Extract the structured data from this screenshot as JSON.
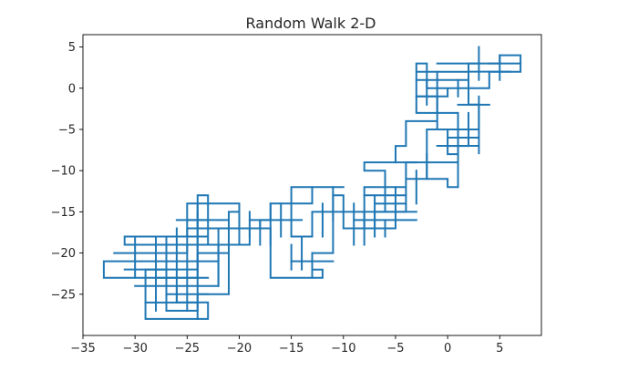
{
  "chart_data": {
    "type": "line",
    "title": "Random Walk 2-D",
    "xlabel": "",
    "ylabel": "",
    "xlim": [
      -35,
      9
    ],
    "ylim": [
      -30,
      6.5
    ],
    "xticks": [
      -35,
      -30,
      -25,
      -20,
      -15,
      -10,
      -5,
      0,
      5
    ],
    "yticks": [
      5,
      0,
      -5,
      -10,
      -15,
      -20,
      -25
    ],
    "grid": false,
    "series": [
      {
        "color": "#1f77b4",
        "x": [
          0,
          0,
          2,
          2,
          5,
          5,
          7,
          7,
          4,
          4,
          -2,
          -2,
          -3,
          -3,
          1,
          1,
          2,
          2,
          0,
          0,
          3,
          3,
          2,
          2,
          -3,
          -3,
          -1,
          -1,
          -2,
          -2,
          -4,
          -4,
          0,
          0,
          1,
          1,
          -2,
          -2,
          -4,
          -4,
          -7,
          -7,
          -10,
          -10,
          -11,
          -11,
          -13,
          -13,
          -12,
          -12,
          -17,
          -17,
          -19,
          -19,
          -21,
          -21,
          -20,
          -20,
          -24,
          -24,
          -23,
          -23,
          -27,
          -27,
          -33,
          -33,
          -27,
          -27,
          -25,
          -25,
          -22,
          -22,
          -26,
          -26,
          -23,
          -23,
          -29,
          -29,
          -27,
          -27,
          -31,
          -31,
          -25,
          -25,
          -23,
          -23,
          -20,
          -20,
          -25,
          -25,
          -21,
          -21,
          -24,
          -24,
          -27,
          -27,
          -24,
          -24,
          -21,
          -21,
          -18,
          -18,
          -17,
          -17,
          -13,
          -13,
          -15,
          -15,
          -13,
          -13,
          -10,
          -10,
          -8,
          -8,
          -4,
          -4,
          -6,
          -6,
          -8,
          -8,
          -5,
          -5,
          -4,
          -4,
          -1,
          -1,
          1,
          1,
          0,
          0,
          3,
          3
        ],
        "y": [
          -1,
          0,
          0,
          3,
          3,
          4,
          4,
          2,
          2,
          0,
          0,
          3,
          3,
          -3,
          -3,
          -5,
          -5,
          -7,
          -7,
          -5,
          -5,
          -2,
          -2,
          2,
          2,
          -1,
          -1,
          -5,
          -5,
          -9,
          -9,
          -11,
          -11,
          -12,
          -12,
          -9,
          -9,
          -11,
          -11,
          -15,
          -15,
          -17,
          -17,
          -13,
          -13,
          -20,
          -20,
          -22,
          -22,
          -23,
          -23,
          -17,
          -17,
          -19,
          -19,
          -15,
          -15,
          -17,
          -17,
          -13,
          -13,
          -18,
          -18,
          -21,
          -21,
          -23,
          -23,
          -20,
          -20,
          -19,
          -19,
          -24,
          -24,
          -26,
          -26,
          -28,
          -28,
          -22,
          -22,
          -19,
          -19,
          -18,
          -18,
          -16,
          -16,
          -19,
          -19,
          -14,
          -14,
          -17,
          -17,
          -25,
          -25,
          -27,
          -27,
          -23,
          -23,
          -20,
          -20,
          -17,
          -17,
          -16,
          -16,
          -14,
          -14,
          -12,
          -12,
          -18,
          -18,
          -15,
          -15,
          -17,
          -17,
          -12,
          -12,
          -15,
          -15,
          -10,
          -10,
          -9,
          -9,
          -7,
          -7,
          -4,
          -4,
          -5,
          -5,
          -8,
          -8,
          -6,
          -6,
          -8
        ]
      }
    ],
    "spurs": [
      [
        -32,
        -20,
        -27,
        -20
      ],
      [
        -31,
        -22,
        -24,
        -22
      ],
      [
        -30,
        -24,
        -26,
        -24
      ],
      [
        -29,
        -26,
        -24,
        -26
      ],
      [
        -28,
        -18,
        -28,
        -27
      ],
      [
        -26,
        -17,
        -26,
        -26
      ],
      [
        -24,
        -14,
        -24,
        -22
      ],
      [
        -30,
        -18,
        -30,
        -23
      ],
      [
        -27,
        -21,
        -22,
        -21
      ],
      [
        -26,
        -16,
        -21,
        -16
      ],
      [
        -28,
        -19,
        -21,
        -19
      ],
      [
        -22,
        -17,
        -22,
        -24
      ],
      [
        -19,
        -16,
        -14,
        -16
      ],
      [
        -17,
        -19,
        -17,
        -14
      ],
      [
        -16,
        -18,
        -16,
        -14
      ],
      [
        -15,
        -21,
        -11,
        -21
      ],
      [
        -14,
        -22,
        -14,
        -18
      ],
      [
        -12,
        -14,
        -12,
        -18
      ],
      [
        -9,
        -16,
        -3,
        -16
      ],
      [
        -10,
        -15,
        -3,
        -15
      ],
      [
        -9,
        -14,
        -9,
        -19
      ],
      [
        -7,
        -18,
        -7,
        -13
      ],
      [
        -5,
        -17,
        -5,
        -12
      ],
      [
        -8,
        -13,
        -4,
        -13
      ],
      [
        -6,
        -11,
        -6,
        -14
      ],
      [
        -3,
        -10,
        -3,
        -14
      ],
      [
        -5,
        -9,
        -3,
        -9
      ],
      [
        -2,
        -8,
        -2,
        -11
      ],
      [
        -1,
        -7,
        3,
        -7
      ],
      [
        1,
        -5,
        1,
        -9
      ],
      [
        2,
        -3,
        2,
        -6
      ],
      [
        3,
        -6,
        3,
        -1
      ],
      [
        1,
        -2,
        4,
        -2
      ],
      [
        1,
        1,
        1,
        -1
      ],
      [
        -2,
        1,
        -2,
        -2
      ],
      [
        -1,
        2,
        -1,
        -3
      ],
      [
        -3,
        1,
        2,
        1
      ],
      [
        3,
        5,
        3,
        1
      ],
      [
        2,
        2,
        6,
        2
      ],
      [
        4,
        3,
        7,
        3
      ],
      [
        5,
        1,
        5,
        4
      ],
      [
        -3,
        -1,
        0,
        -1
      ],
      [
        -1,
        3,
        3,
        3
      ],
      [
        -13,
        -12,
        -10,
        -12
      ],
      [
        -11,
        -16,
        -11,
        -12
      ],
      [
        -7,
        -14,
        -4,
        -14
      ],
      [
        -9,
        -17,
        -5,
        -17
      ],
      [
        -8,
        -15,
        -8,
        -19
      ],
      [
        -6,
        -16,
        -6,
        -18
      ],
      [
        -27,
        -25,
        -23,
        -25
      ],
      [
        -28,
        -23,
        -23,
        -23
      ],
      [
        -25,
        -27,
        -25,
        -17
      ],
      [
        -29,
        -19,
        -24,
        -19
      ],
      [
        -24,
        -28,
        -24,
        -15
      ],
      [
        -19,
        -15,
        -19,
        -18
      ],
      [
        -20,
        -14,
        -20,
        -17
      ],
      [
        -18,
        -16,
        -18,
        -19
      ],
      [
        -15,
        -19,
        -15,
        -22
      ],
      [
        -13,
        -20,
        -13,
        -23
      ]
    ]
  }
}
